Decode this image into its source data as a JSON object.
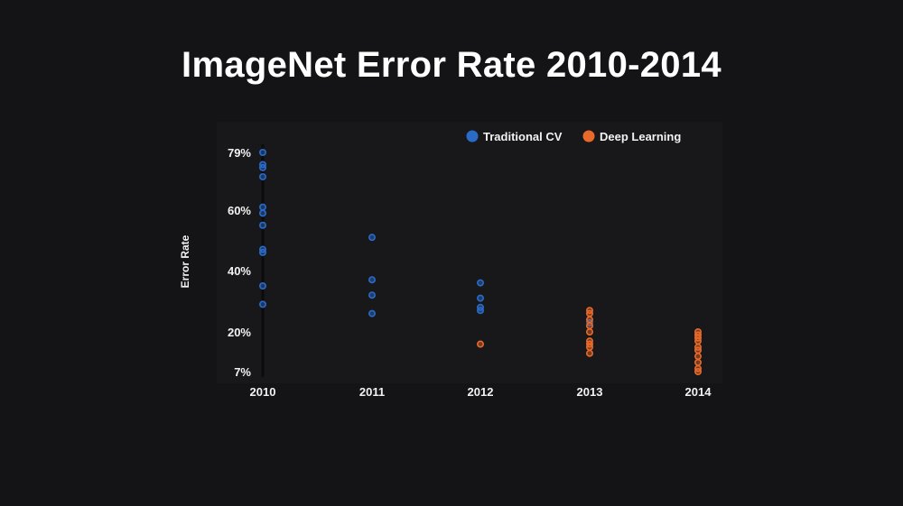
{
  "title": "ImageNet Error Rate 2010-2014",
  "colors": {
    "background": "#141416",
    "plot_background": "#18181b",
    "traditional": "#2a6bc8",
    "deep": "#e8692a"
  },
  "chart_data": {
    "type": "scatter",
    "title": "ImageNet Error Rate 2010-2014",
    "xlabel": "",
    "ylabel": "Error Rate",
    "x_categories": [
      "2010",
      "2011",
      "2012",
      "2013",
      "2014"
    ],
    "y_ticks": [
      79,
      60,
      40,
      20,
      7
    ],
    "y_tick_labels": [
      "79%",
      "60%",
      "40%",
      "20%",
      "7%"
    ],
    "ylim": [
      7,
      79
    ],
    "legend_position": "top",
    "grid": false,
    "series": [
      {
        "name": "Traditional CV",
        "color": "#2a6bc8",
        "points": [
          {
            "x": "2010",
            "y": 79
          },
          {
            "x": "2010",
            "y": 75
          },
          {
            "x": "2010",
            "y": 74
          },
          {
            "x": "2010",
            "y": 71
          },
          {
            "x": "2010",
            "y": 61
          },
          {
            "x": "2010",
            "y": 59
          },
          {
            "x": "2010",
            "y": 55
          },
          {
            "x": "2010",
            "y": 47
          },
          {
            "x": "2010",
            "y": 46
          },
          {
            "x": "2010",
            "y": 35
          },
          {
            "x": "2010",
            "y": 29
          },
          {
            "x": "2011",
            "y": 51
          },
          {
            "x": "2011",
            "y": 37
          },
          {
            "x": "2011",
            "y": 32
          },
          {
            "x": "2011",
            "y": 26
          },
          {
            "x": "2012",
            "y": 36
          },
          {
            "x": "2012",
            "y": 31
          },
          {
            "x": "2012",
            "y": 28
          },
          {
            "x": "2012",
            "y": 27
          },
          {
            "x": "2013",
            "y": 23
          }
        ]
      },
      {
        "name": "Deep Learning",
        "color": "#e8692a",
        "points": [
          {
            "x": "2012",
            "y": 16
          },
          {
            "x": "2013",
            "y": 27
          },
          {
            "x": "2013",
            "y": 26
          },
          {
            "x": "2013",
            "y": 24
          },
          {
            "x": "2013",
            "y": 22
          },
          {
            "x": "2013",
            "y": 20
          },
          {
            "x": "2013",
            "y": 17
          },
          {
            "x": "2013",
            "y": 16
          },
          {
            "x": "2013",
            "y": 15
          },
          {
            "x": "2013",
            "y": 13
          },
          {
            "x": "2014",
            "y": 20
          },
          {
            "x": "2014",
            "y": 19
          },
          {
            "x": "2014",
            "y": 18
          },
          {
            "x": "2014",
            "y": 17
          },
          {
            "x": "2014",
            "y": 15
          },
          {
            "x": "2014",
            "y": 14
          },
          {
            "x": "2014",
            "y": 12
          },
          {
            "x": "2014",
            "y": 10
          },
          {
            "x": "2014",
            "y": 8
          },
          {
            "x": "2014",
            "y": 7
          }
        ]
      }
    ]
  }
}
